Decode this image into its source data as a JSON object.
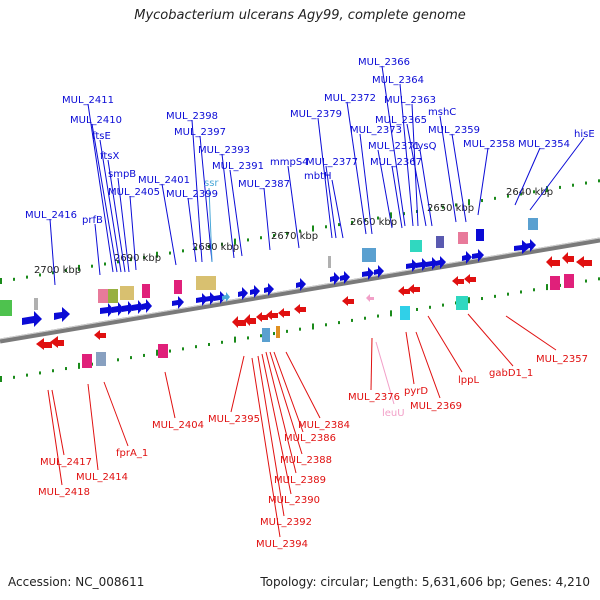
{
  "title": "Mycobacterium ulcerans Agy99, complete genome",
  "accession": "Accession: NC_008611",
  "summary": "Topology: circular; Length: 5,631,606 bp; Genes: 4,210",
  "colors": {
    "top_strand": "#0b0bd6",
    "bottom_strand": "#e01010",
    "rna": "#4aa8d8",
    "pseudo": "#f2a0c8",
    "backbone": "#7a7a7a",
    "tick": "#1a8a1a"
  },
  "scale_labels": [
    "2700 kbp",
    "2690 kbp",
    "2680 kbp",
    "2670 kbp",
    "2660 kbp",
    "2650 kbp",
    "2640 kbp"
  ],
  "top_genes": [
    "MUL_2416",
    "prfB",
    "MUL_2411",
    "MUL_2410",
    "ftsE",
    "ftsX",
    "smpB",
    "MUL_2405",
    "MUL_2401",
    "MUL_2399",
    "MUL_2398",
    "MUL_2397",
    "MUL_2393",
    "ssr",
    "MUL_2391",
    "MUL_2387",
    "mmpS4",
    "MUL_2379",
    "MUL_2377",
    "mbtH",
    "MUL_2372",
    "MUL_2373",
    "MUL_2371",
    "MUL_2367",
    "MUL_2366",
    "MUL_2364",
    "MUL_2363",
    "MUL_2365",
    "cysQ",
    "mshC",
    "MUL_2359",
    "MUL_2358",
    "MUL_2354",
    "hisE"
  ],
  "bottom_genes": [
    "MUL_2417",
    "MUL_2418",
    "MUL_2414",
    "fprA_1",
    "MUL_2404",
    "MUL_2395",
    "MUL_2384",
    "MUL_2386",
    "MUL_2388",
    "MUL_2389",
    "MUL_2390",
    "MUL_2392",
    "MUL_2394",
    "MUL_2376",
    "leuU",
    "pyrD",
    "MUL_2369",
    "lppL",
    "gabD1_1",
    "MUL_2357"
  ]
}
